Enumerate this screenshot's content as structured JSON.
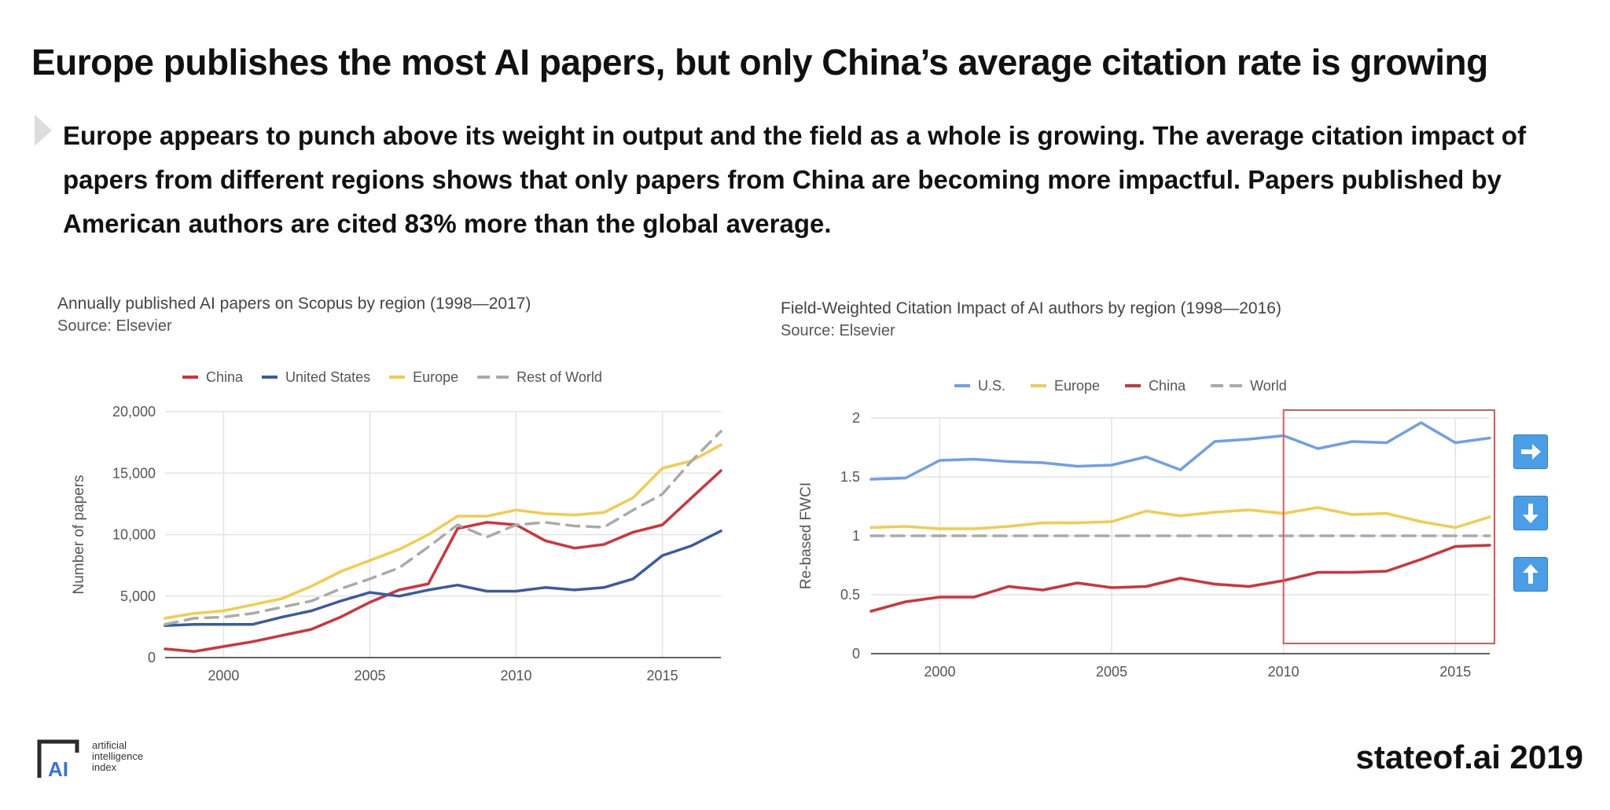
{
  "slide": {
    "title": "Europe publishes the most AI papers, but only China’s average citation rate is growing",
    "body": "Europe appears to punch above its weight in output and the field as a whole is growing. The average citation impact of papers from different regions shows that only papers from China are becoming more impactful. Papers published by American authors are cited 83% more than the global average.",
    "footer": "stateof.ai 2019",
    "logo_lines": [
      "artificial",
      "intelligence",
      "index"
    ],
    "logo_mark": "AI"
  },
  "chart_data": [
    {
      "type": "line",
      "title": "Annually published AI papers on Scopus by region (1998—2017)",
      "source": "Source: Elsevier",
      "xlabel": "",
      "ylabel": "Number of papers",
      "xlim": [
        1998,
        2017
      ],
      "ylim": [
        0,
        20000
      ],
      "xticks": [
        2000,
        2005,
        2010,
        2015
      ],
      "xtick_labels": [
        "2000",
        "2005",
        "2010",
        "2015"
      ],
      "yticks": [
        0,
        5000,
        10000,
        15000,
        20000
      ],
      "ytick_labels": [
        "0",
        "5,000",
        "10,000",
        "15,000",
        "20,000"
      ],
      "grid": true,
      "x": [
        1998,
        1999,
        2000,
        2001,
        2002,
        2003,
        2004,
        2005,
        2006,
        2007,
        2008,
        2009,
        2010,
        2011,
        2012,
        2013,
        2014,
        2015,
        2016,
        2017
      ],
      "series": [
        {
          "name": "China",
          "color": "#d0333a",
          "dash": false,
          "values": [
            700,
            500,
            900,
            1300,
            1800,
            2300,
            3300,
            4500,
            5500,
            6000,
            10500,
            11000,
            10800,
            9500,
            8900,
            9200,
            10200,
            10800,
            13000,
            15200
          ]
        },
        {
          "name": "United States",
          "color": "#3a5ba0",
          "dash": false,
          "values": [
            2600,
            2700,
            2700,
            2700,
            3300,
            3800,
            4600,
            5300,
            5000,
            5500,
            5900,
            5400,
            5400,
            5700,
            5500,
            5700,
            6400,
            8300,
            9100,
            10300
          ]
        },
        {
          "name": "Europe",
          "color": "#f2cc4e",
          "dash": false,
          "values": [
            3200,
            3600,
            3800,
            4300,
            4800,
            5800,
            7000,
            7900,
            8800,
            10000,
            11500,
            11500,
            12000,
            11700,
            11600,
            11800,
            13000,
            15400,
            16000,
            17300
          ]
        },
        {
          "name": "Rest of World",
          "color": "#aaaaaa",
          "dash": true,
          "values": [
            2700,
            3200,
            3300,
            3600,
            4100,
            4600,
            5600,
            6400,
            7300,
            9000,
            10800,
            9800,
            10800,
            11000,
            10700,
            10600,
            12000,
            13300,
            16000,
            18400
          ]
        }
      ]
    },
    {
      "type": "line",
      "title": "Field-Weighted Citation Impact of AI authors by region (1998—2016)",
      "source": "Source: Elsevier",
      "xlabel": "",
      "ylabel": "Re-based FWCI",
      "xlim": [
        1998,
        2016
      ],
      "ylim": [
        0,
        2
      ],
      "xticks": [
        2000,
        2005,
        2010,
        2015
      ],
      "xtick_labels": [
        "2000",
        "2005",
        "2010",
        "2015"
      ],
      "yticks": [
        0,
        0.5,
        1,
        1.5,
        2
      ],
      "ytick_labels": [
        "0",
        "0.5",
        "1",
        "1.5",
        "2"
      ],
      "grid": true,
      "highlight_range": [
        2010,
        2016
      ],
      "x": [
        1998,
        1999,
        2000,
        2001,
        2002,
        2003,
        2004,
        2005,
        2006,
        2007,
        2008,
        2009,
        2010,
        2011,
        2012,
        2013,
        2014,
        2015,
        2016
      ],
      "series": [
        {
          "name": "U.S.",
          "color": "#6f9fe6",
          "dash": false,
          "values": [
            1.48,
            1.49,
            1.64,
            1.65,
            1.63,
            1.62,
            1.59,
            1.6,
            1.67,
            1.56,
            1.8,
            1.82,
            1.85,
            1.74,
            1.8,
            1.79,
            1.96,
            1.79,
            1.83
          ]
        },
        {
          "name": "Europe",
          "color": "#f2cc4e",
          "dash": false,
          "values": [
            1.07,
            1.08,
            1.06,
            1.06,
            1.08,
            1.11,
            1.11,
            1.12,
            1.21,
            1.17,
            1.2,
            1.22,
            1.19,
            1.24,
            1.18,
            1.19,
            1.12,
            1.07,
            1.16
          ]
        },
        {
          "name": "China",
          "color": "#d0333a",
          "dash": false,
          "values": [
            0.36,
            0.44,
            0.48,
            0.48,
            0.57,
            0.54,
            0.6,
            0.56,
            0.57,
            0.64,
            0.59,
            0.57,
            0.62,
            0.69,
            0.69,
            0.7,
            0.8,
            0.91,
            0.92
          ]
        },
        {
          "name": "World",
          "color": "#aaaaaa",
          "dash": true,
          "values": [
            1,
            1,
            1,
            1,
            1,
            1,
            1,
            1,
            1,
            1,
            1,
            1,
            1,
            1,
            1,
            1,
            1,
            1,
            1
          ]
        }
      ]
    }
  ],
  "nav_buttons": [
    {
      "icon": "arrow-right-icon",
      "glyph": "➡",
      "color": "#4a9ee8"
    },
    {
      "icon": "arrow-down-icon",
      "glyph": "⬇",
      "color": "#4a9ee8"
    },
    {
      "icon": "arrow-up-icon",
      "glyph": "⬆",
      "color": "#4a9ee8"
    }
  ]
}
